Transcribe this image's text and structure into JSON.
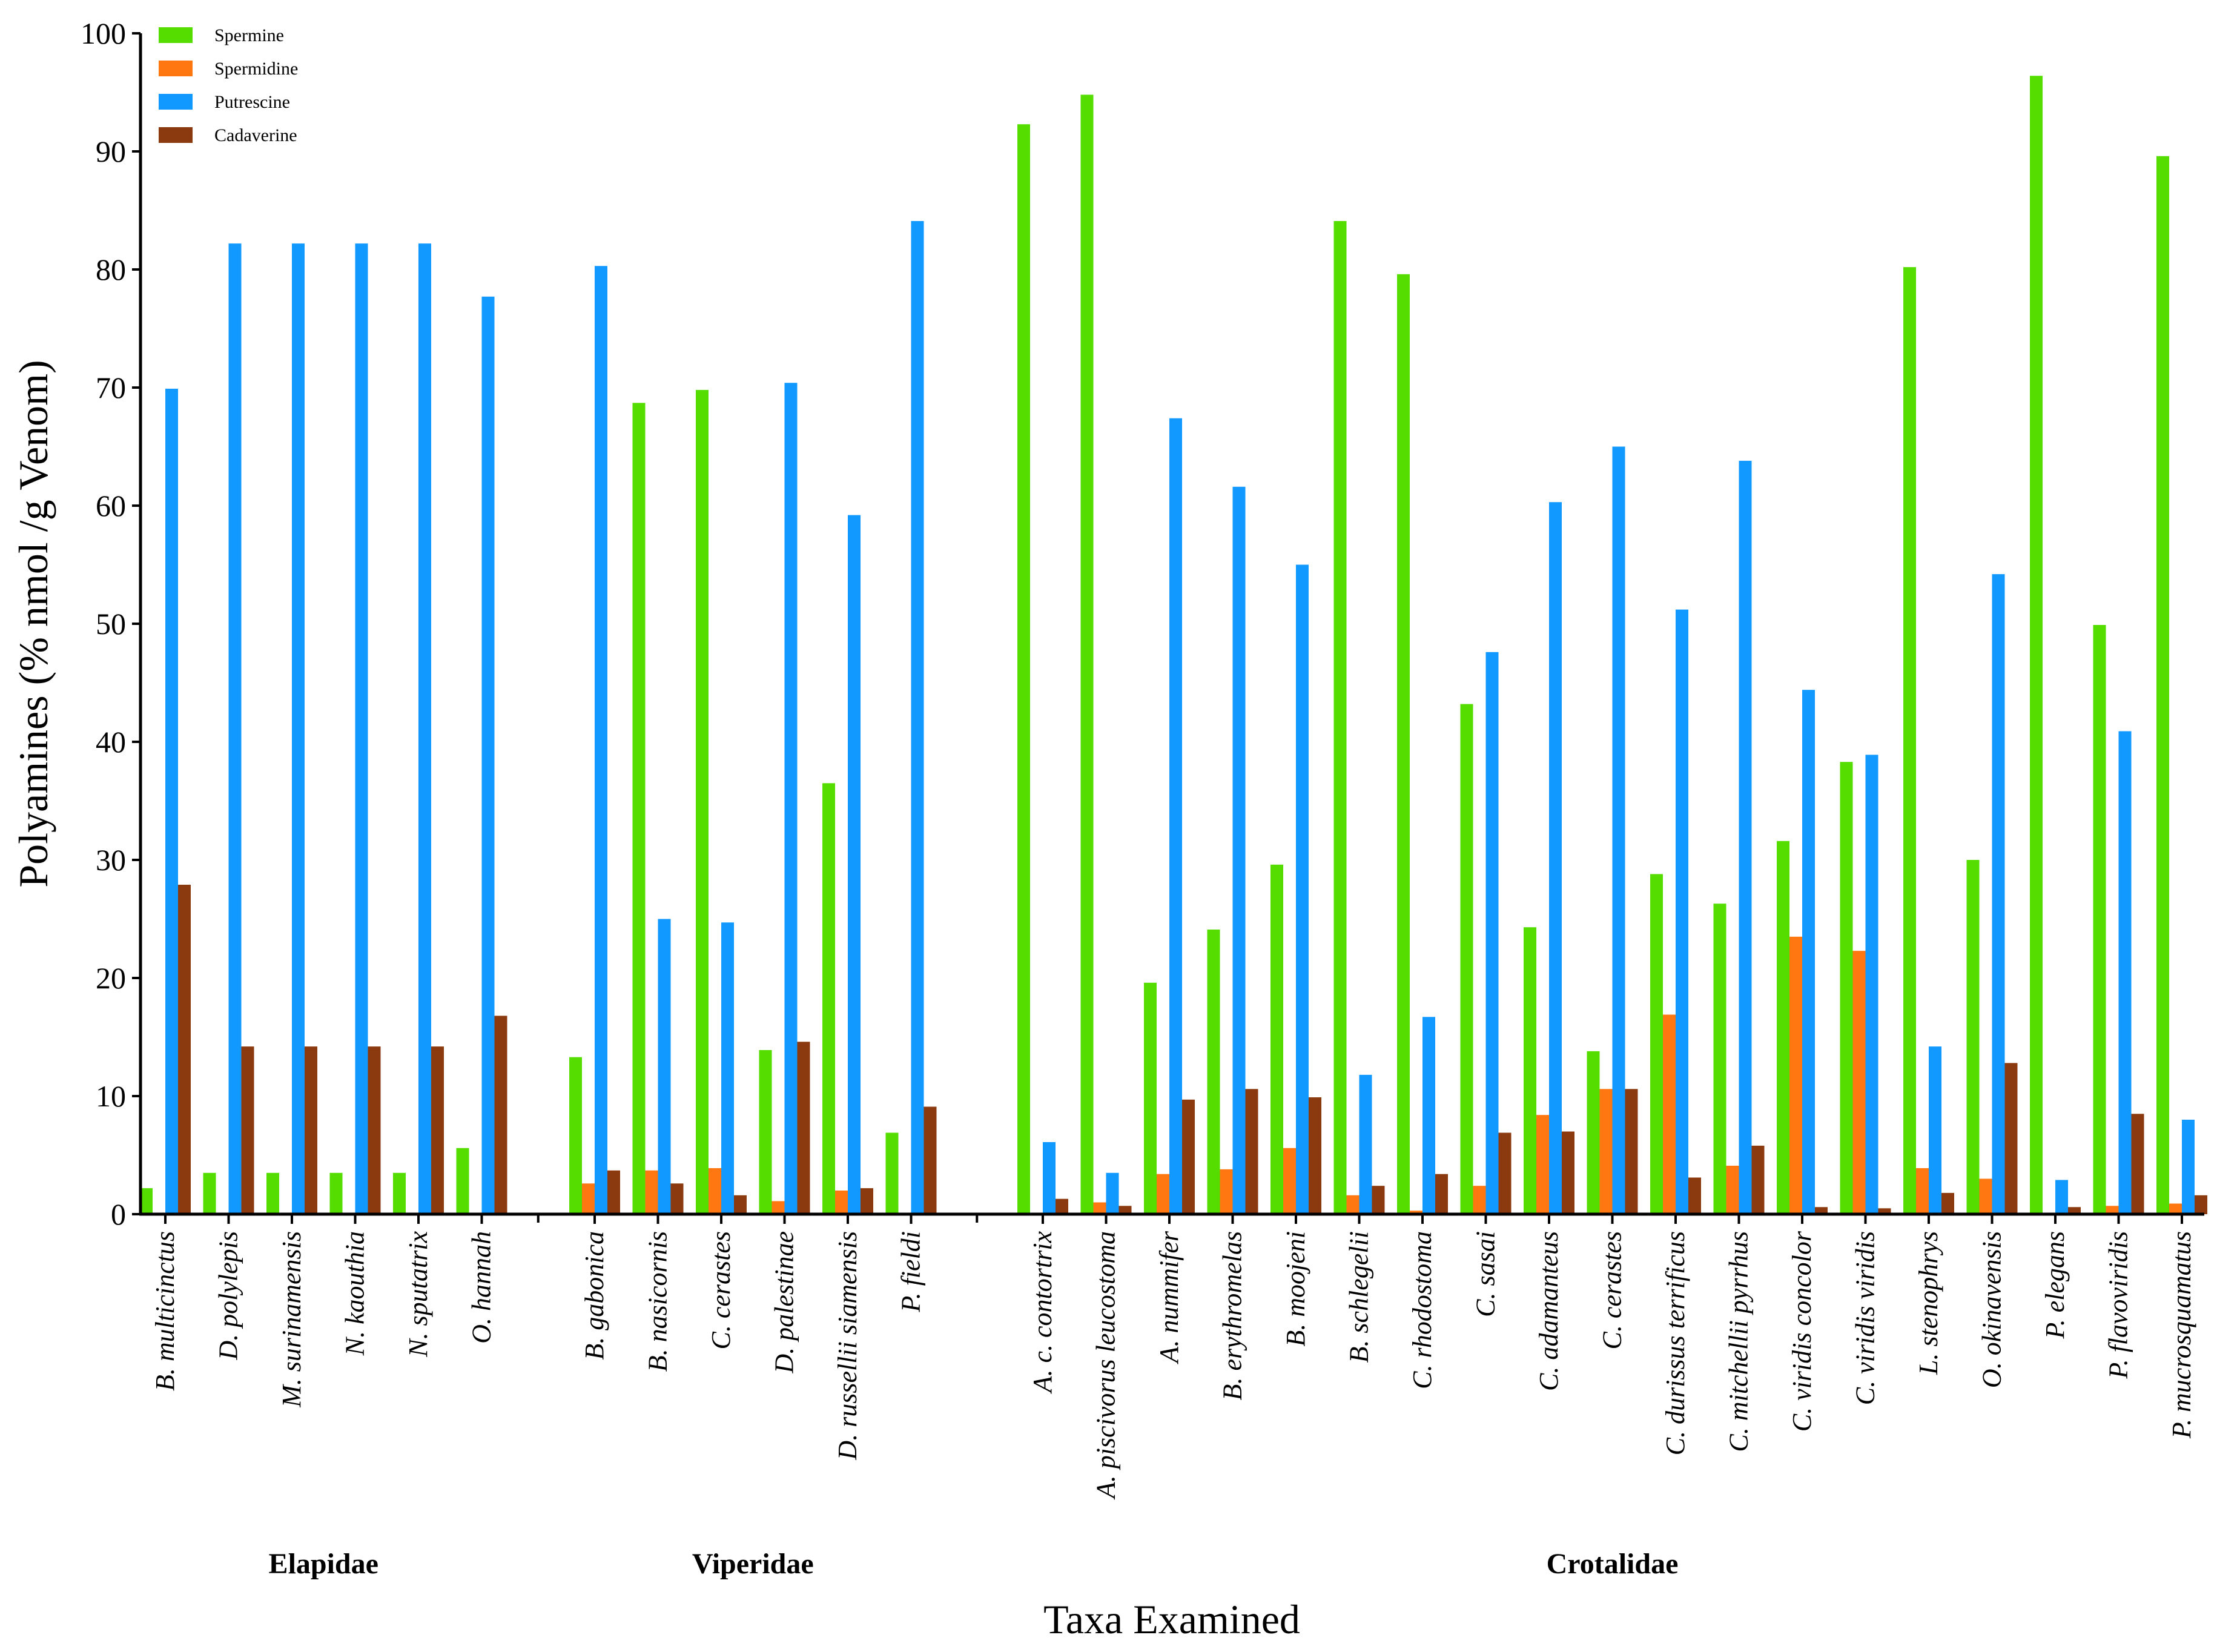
{
  "chart_data": {
    "type": "bar",
    "title": "",
    "xlabel": "Taxa Examined",
    "ylabel": "Polyamines (% nmol /g Venom)",
    "ylim": [
      0,
      100
    ],
    "yticks": [
      0,
      10,
      20,
      30,
      40,
      50,
      60,
      70,
      80,
      90,
      100
    ],
    "grid": false,
    "legend_position": "top-left",
    "colors": {
      "Spermine": "#55dd00",
      "Spermidine": "#ff7711",
      "Putrescine": "#1199ff",
      "Cadaverine": "#8b3a0f"
    },
    "groups": [
      {
        "name": "Elapidae",
        "start": 0,
        "count": 6
      },
      {
        "name": "Viperidae",
        "start": 6,
        "count": 6
      },
      {
        "name": "Crotalidae",
        "start": 12,
        "count": 19
      }
    ],
    "categories": [
      "B. multicinctus",
      "D. polylepis",
      "M. surinamensis",
      "N. kaouthia",
      "N. sputatrix",
      "O. hannah",
      "B. gabonica",
      "B. nasicornis",
      "C. cerastes",
      "D. palestinae",
      "D. russellii siamensis",
      "P. fieldi",
      "A. c. contortrix",
      "A. piscivorus leucostoma",
      "A. nummifer",
      "B. erythromelas",
      "B. moojeni",
      "B. schlegelii",
      "C. rhodostoma",
      "C. sasai",
      "C. adamanteus",
      "C. cerastes",
      "C. durissus terrificus",
      "C. mitchellii pyrrhus",
      "C. viridis concolor",
      "C. viridis viridis",
      "L. stenophrys",
      "O. okinavensis",
      "P. elegans",
      "P. flavoviridis",
      "P. mucrosquamatus"
    ],
    "series": [
      {
        "name": "Spermine",
        "values": [
          2.2,
          3.5,
          3.5,
          3.5,
          3.5,
          5.6,
          13.3,
          68.7,
          69.8,
          13.9,
          36.5,
          6.9,
          92.3,
          94.8,
          19.6,
          24.1,
          29.6,
          84.1,
          79.6,
          43.2,
          24.3,
          13.8,
          28.8,
          26.3,
          31.6,
          38.3,
          80.2,
          30.0,
          96.4,
          49.9,
          89.6
        ]
      },
      {
        "name": "Spermidine",
        "values": [
          0,
          0,
          0,
          0,
          0,
          0,
          2.6,
          3.7,
          3.9,
          1.1,
          2.0,
          0,
          0,
          1.0,
          3.4,
          3.8,
          5.6,
          1.6,
          0.3,
          2.4,
          8.4,
          10.6,
          16.9,
          4.1,
          23.5,
          22.3,
          3.9,
          3.0,
          0,
          0.7,
          0.9
        ]
      },
      {
        "name": "Putrescine",
        "values": [
          69.9,
          82.2,
          82.2,
          82.2,
          82.2,
          77.7,
          80.3,
          25.0,
          24.7,
          70.4,
          59.2,
          84.1,
          6.1,
          3.5,
          67.4,
          61.6,
          55.0,
          11.8,
          16.7,
          47.6,
          60.3,
          65.0,
          51.2,
          63.8,
          44.4,
          38.9,
          14.2,
          54.2,
          2.9,
          40.9,
          8.0
        ]
      },
      {
        "name": "Cadaverine",
        "values": [
          27.9,
          14.2,
          14.2,
          14.2,
          14.2,
          16.8,
          3.7,
          2.6,
          1.6,
          14.6,
          2.2,
          9.1,
          1.3,
          0.7,
          9.7,
          10.6,
          9.9,
          2.4,
          3.4,
          6.9,
          7.0,
          10.6,
          3.1,
          5.8,
          0.6,
          0.5,
          1.8,
          12.8,
          0.6,
          8.5,
          1.6
        ]
      }
    ]
  }
}
